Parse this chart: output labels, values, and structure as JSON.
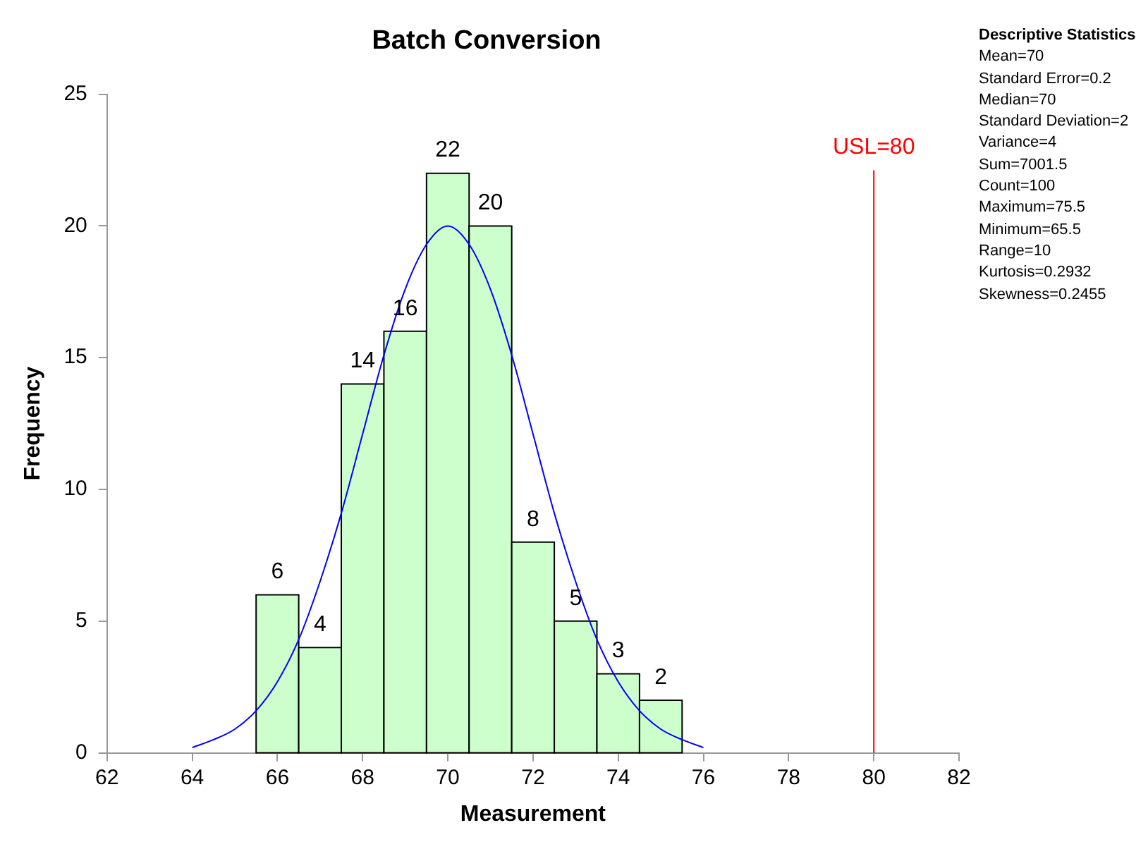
{
  "chart_data": {
    "type": "histogram",
    "title": "Batch Conversion",
    "xlabel": "Measurement",
    "ylabel": "Frequency",
    "xlim": [
      62,
      82
    ],
    "xticks": [
      62,
      64,
      66,
      68,
      70,
      72,
      74,
      76,
      78,
      80,
      82
    ],
    "ylim": [
      0,
      25
    ],
    "yticks": [
      0,
      5,
      10,
      15,
      20,
      25
    ],
    "grid": false,
    "legend": false,
    "series": [
      {
        "type": "histogram",
        "color": "#ccffcc",
        "bins": [
          65.5,
          66.5,
          67.5,
          68.5,
          69.5,
          70.5,
          71.5,
          72.5,
          73.5,
          74.5,
          75.5
        ],
        "values": [
          6,
          4,
          14,
          16,
          22,
          20,
          8,
          5,
          3,
          2
        ],
        "value_labels": [
          "6",
          "4",
          "14",
          "16",
          "22",
          "20",
          "8",
          "5",
          "3",
          "2"
        ]
      },
      {
        "type": "line",
        "color": "#0000ff",
        "x": [
          64,
          64.5,
          65,
          65.5,
          66,
          66.5,
          67,
          67.5,
          68,
          68.5,
          69,
          69.5,
          70,
          70.5,
          71,
          71.5,
          72,
          72.5,
          73,
          73.5,
          74,
          74.5,
          75,
          75.5,
          76
        ],
        "values": [
          0.2,
          0.5,
          0.9,
          1.6,
          2.7,
          4.3,
          6.5,
          9.1,
          12.1,
          15.1,
          17.6,
          19.3,
          20,
          19.3,
          17.6,
          15.1,
          12.1,
          9.1,
          6.5,
          4.3,
          2.7,
          1.6,
          0.9,
          0.5,
          0.2
        ]
      }
    ],
    "ref_lines": [
      {
        "axis": "x",
        "value": 80,
        "label": "USL=80",
        "color": "#ff0000"
      }
    ],
    "annotations": [
      "Descriptive Statistics",
      "Mean=70",
      "Standard Error=0.2",
      "Median=70",
      "Standard Deviation=2",
      "Variance=4",
      "Sum=7001.5",
      "Count=100",
      "Maximum=75.5",
      "Minimum=65.5",
      "Range=10",
      "Kurtosis=0.2932",
      "Skewness=0.2455"
    ]
  }
}
